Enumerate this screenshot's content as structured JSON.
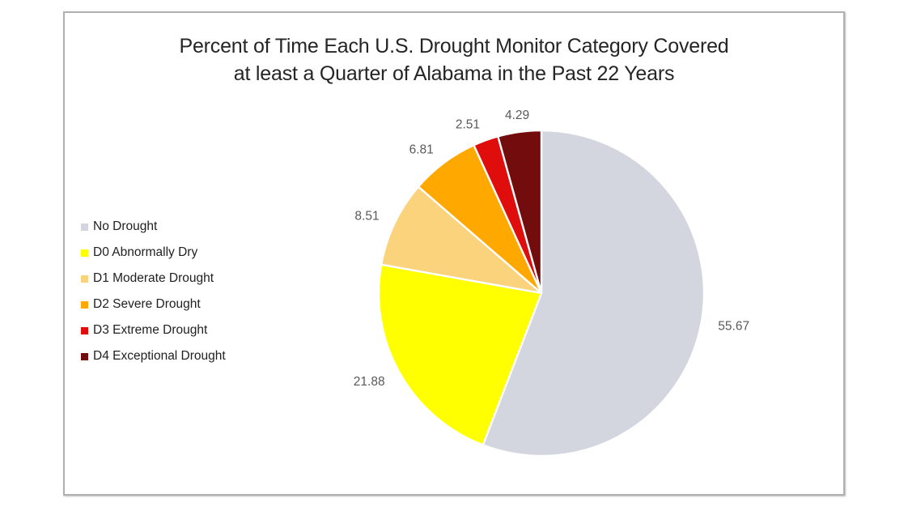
{
  "chart_data": {
    "type": "pie",
    "title": "Percent of Time Each U.S. Drought Monitor Category Covered at least a Quarter of Alabama in the Past 22 Years",
    "title_lines": [
      "Percent of Time Each U.S. Drought Monitor Category Covered",
      "at least a Quarter of Alabama in the Past 22 Years"
    ],
    "categories": [
      "No Drought",
      "D0 Abnormally Dry",
      "D1 Moderate Drought",
      "D2 Severe Drought",
      "D3 Extreme Drought",
      "D4 Exceptional Drought"
    ],
    "values": [
      55.67,
      21.88,
      8.51,
      6.81,
      2.51,
      4.29
    ],
    "data_labels": [
      "55.67",
      "21.88",
      "8.51",
      "6.81",
      "2.51",
      "4.29"
    ],
    "colors": [
      "#d3d6de",
      "#ffff00",
      "#fbd37d",
      "#ffa800",
      "#e00d0d",
      "#730c0c"
    ],
    "slice_border_color": "#ffffff",
    "label_color": "#595959",
    "legend_position": "left",
    "start_angle_deg": 0,
    "direction": "clockwise"
  },
  "frame": {
    "border_color": "#b0b0b0",
    "background_color": "#ffffff"
  }
}
